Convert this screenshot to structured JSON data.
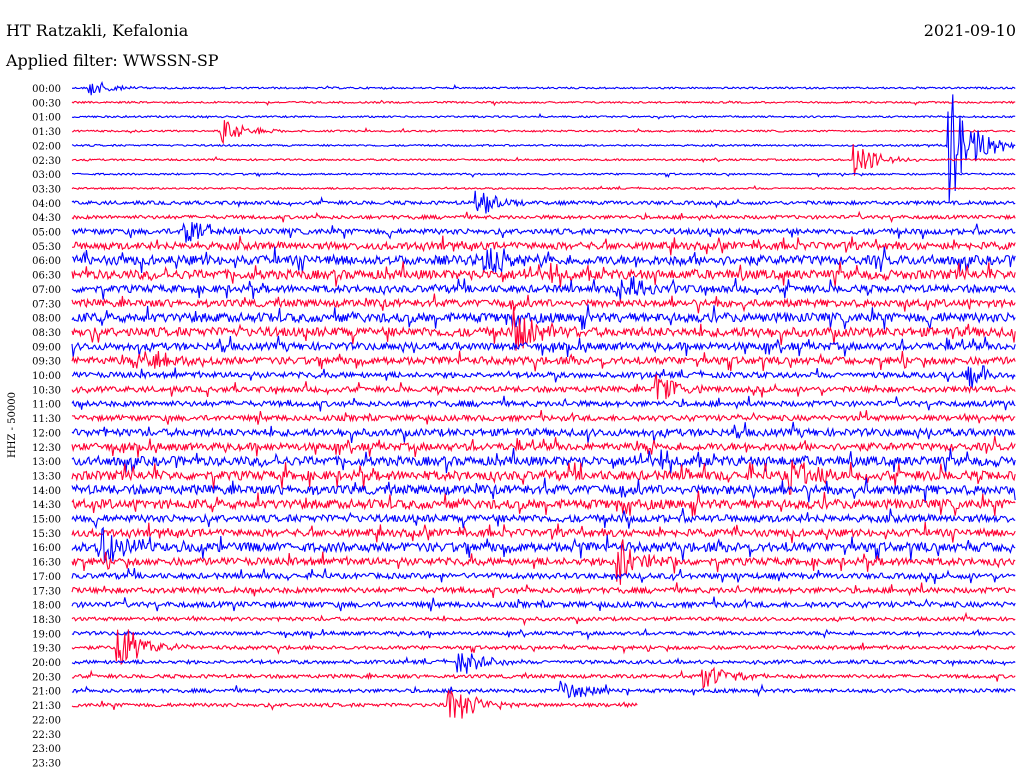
{
  "header": {
    "station": "HT Ratzakli, Kefalonia",
    "date": "2021-09-10",
    "filter": "Applied filter: WWSSN-SP"
  },
  "chart_data": {
    "type": "line",
    "title": "HT Ratzakli, Kefalonia",
    "subtitle": "Applied filter: WWSSN-SP",
    "ylabel": "HHZ - 50000",
    "rows": [
      "00:00",
      "00:30",
      "01:00",
      "01:30",
      "02:00",
      "02:30",
      "03:00",
      "03:30",
      "04:00",
      "04:30",
      "05:00",
      "05:30",
      "06:00",
      "06:30",
      "07:00",
      "07:30",
      "08:00",
      "08:30",
      "09:00",
      "09:30",
      "10:00",
      "10:30",
      "11:00",
      "11:30",
      "12:00",
      "12:30",
      "13:00",
      "13:30",
      "14:00",
      "14:30",
      "15:00",
      "15:30",
      "16:00",
      "16:30",
      "17:00",
      "17:30",
      "18:00",
      "18:30",
      "19:00",
      "19:30",
      "20:00",
      "20:30",
      "21:00",
      "21:30",
      "22:00",
      "22:30",
      "23:00",
      "23:30"
    ],
    "trace_colors": [
      "#0000ff",
      "#ff0033"
    ],
    "last_trace_row": "21:30",
    "last_trace_fraction": 0.6,
    "noise_level": [
      1,
      1,
      1,
      1,
      1,
      1,
      1,
      1,
      2,
      2,
      3,
      4,
      5,
      5,
      4,
      4,
      5,
      5,
      4,
      4,
      3,
      3,
      3,
      3,
      4,
      4,
      5,
      5,
      5,
      5,
      4,
      4,
      5,
      4,
      3,
      3,
      3,
      2,
      2,
      2,
      2,
      2,
      2,
      2,
      0,
      0,
      0,
      0
    ],
    "events": [
      {
        "row": "00:00",
        "pos": 0.02,
        "amp": 8
      },
      {
        "row": "01:30",
        "pos": 0.16,
        "amp": 12
      },
      {
        "row": "02:00",
        "pos": 0.93,
        "amp": 60
      },
      {
        "row": "02:30",
        "pos": 0.83,
        "amp": 18
      },
      {
        "row": "04:00",
        "pos": 0.43,
        "amp": 14
      },
      {
        "row": "05:00",
        "pos": 0.12,
        "amp": 16
      },
      {
        "row": "06:00",
        "pos": 0.44,
        "amp": 18
      },
      {
        "row": "07:00",
        "pos": 0.58,
        "amp": 14
      },
      {
        "row": "08:30",
        "pos": 0.47,
        "amp": 22
      },
      {
        "row": "09:30",
        "pos": 0.08,
        "amp": 14
      },
      {
        "row": "10:00",
        "pos": 0.95,
        "amp": 16
      },
      {
        "row": "10:30",
        "pos": 0.62,
        "amp": 14
      },
      {
        "row": "13:30",
        "pos": 0.76,
        "amp": 18
      },
      {
        "row": "16:00",
        "pos": 0.03,
        "amp": 22
      },
      {
        "row": "16:30",
        "pos": 0.58,
        "amp": 26
      },
      {
        "row": "19:30",
        "pos": 0.05,
        "amp": 28
      },
      {
        "row": "20:00",
        "pos": 0.41,
        "amp": 16
      },
      {
        "row": "20:30",
        "pos": 0.67,
        "amp": 14
      },
      {
        "row": "21:00",
        "pos": 0.52,
        "amp": 12
      },
      {
        "row": "21:30",
        "pos": 0.4,
        "amp": 24
      }
    ]
  }
}
